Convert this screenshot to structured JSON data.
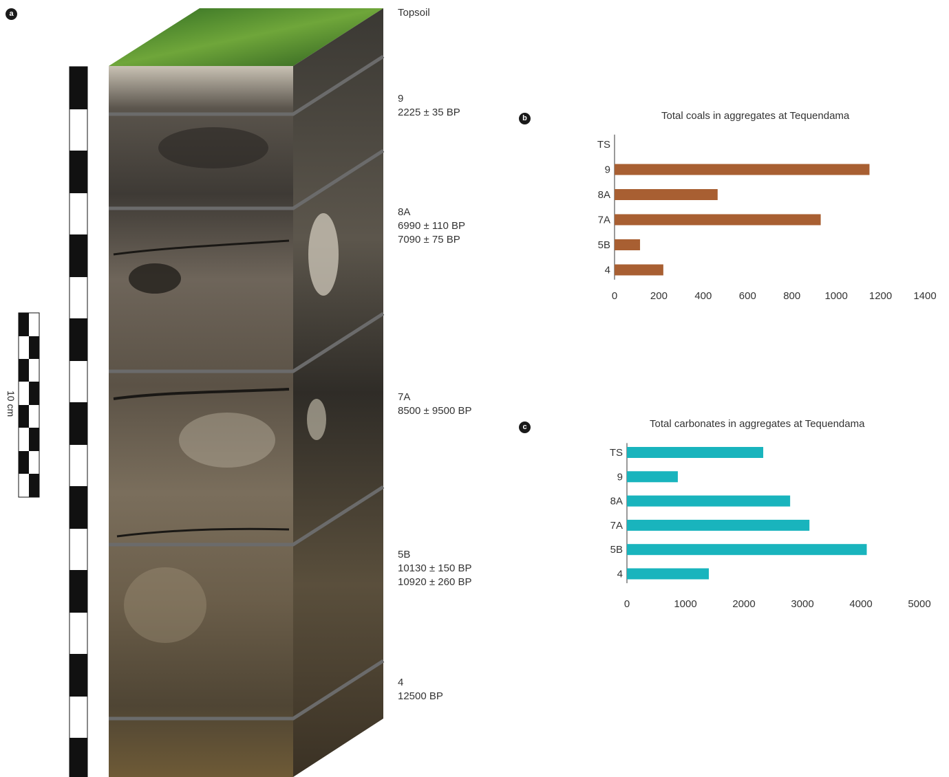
{
  "panels": {
    "a": {
      "badge": "a"
    },
    "b": {
      "badge": "b"
    },
    "c": {
      "badge": "c"
    }
  },
  "scale_bar": {
    "label": "10 cm"
  },
  "strata": [
    {
      "lines": [
        "Topsoil"
      ]
    },
    {
      "lines": [
        "9",
        "2225 ± 35 BP"
      ]
    },
    {
      "lines": [
        "8A",
        "6990 ± 110 BP",
        "7090 ± 75 BP"
      ]
    },
    {
      "lines": [
        "7A",
        "8500 ± 9500 BP"
      ]
    },
    {
      "lines": [
        "5B",
        "10130 ± 150 BP",
        "10920 ± 260 BP"
      ]
    },
    {
      "lines": [
        "4",
        "12500 BP"
      ]
    }
  ],
  "colors": {
    "coals": "#a85f32",
    "carbonates": "#19b4bd",
    "axis": "#333333"
  },
  "chart_data": [
    {
      "type": "bar",
      "orientation": "horizontal",
      "title": "Total coals in aggregates at Tequendama",
      "categories": [
        "TS",
        "9",
        "8A",
        "7A",
        "5B",
        "4"
      ],
      "values": [
        0,
        1150,
        465,
        930,
        115,
        220
      ],
      "xlim": [
        0,
        1400
      ],
      "xticks": [
        "0",
        "200",
        "400",
        "600",
        "800",
        "1000",
        "1200",
        "1400"
      ],
      "grid": false
    },
    {
      "type": "bar",
      "orientation": "horizontal",
      "title": "Total carbonates in aggregates at Tequendama",
      "categories": [
        "TS",
        "9",
        "8A",
        "7A",
        "5B",
        "4"
      ],
      "values": [
        2330,
        870,
        2790,
        3120,
        4100,
        1400
      ],
      "xlim": [
        0,
        5000
      ],
      "xticks": [
        "0",
        "1000",
        "2000",
        "3000",
        "4000",
        "5000"
      ],
      "grid": false
    }
  ]
}
